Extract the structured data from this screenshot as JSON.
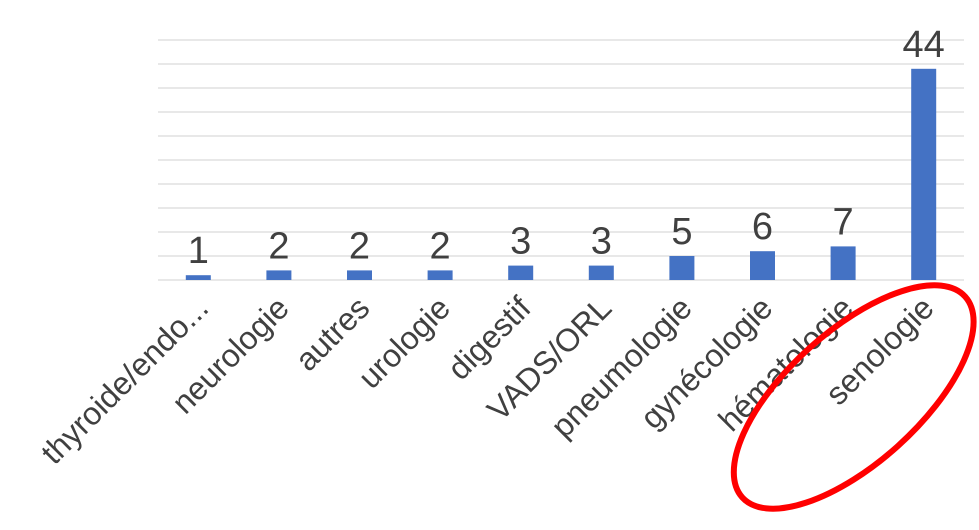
{
  "chart_data": {
    "type": "bar",
    "title": "",
    "xlabel": "",
    "ylabel": "",
    "categories": [
      "thyroide/endo...",
      "neurologie",
      "autres",
      "urologie",
      "digestif",
      "VADS/ORL",
      "pneumologie",
      "gynécologie",
      "hématologie",
      "senologie"
    ],
    "values": [
      1,
      2,
      2,
      2,
      3,
      3,
      5,
      6,
      7,
      44
    ],
    "data_labels": [
      "1",
      "2",
      "2",
      "2",
      "3",
      "3",
      "5",
      "6",
      "7",
      "44"
    ],
    "ylim": [
      0,
      50
    ],
    "grid": true,
    "legend": "none",
    "bar_color": "#4472c4",
    "highlight": {
      "category": "senologie",
      "shape": "ellipse",
      "color": "#ff0000"
    }
  }
}
